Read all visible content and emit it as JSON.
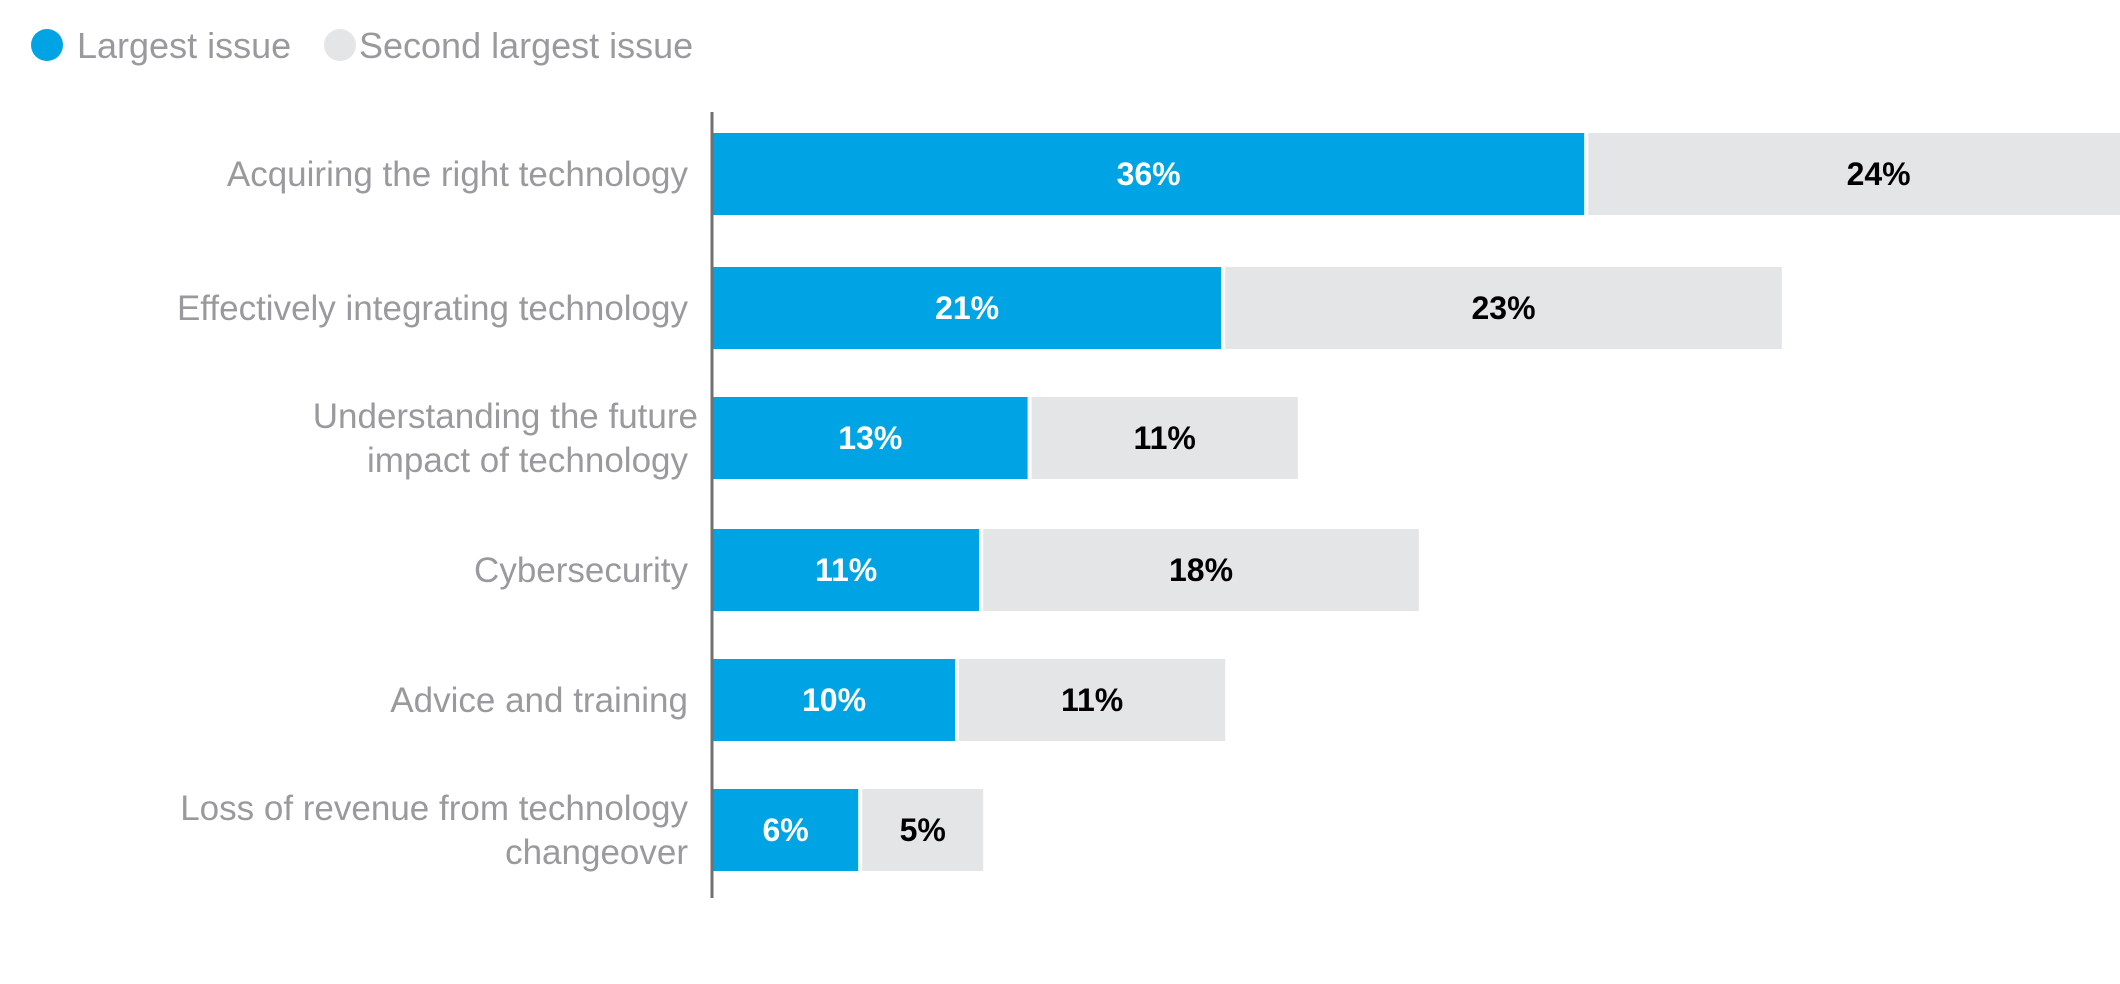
{
  "chart_data": {
    "type": "bar",
    "orientation": "horizontal",
    "stacked": true,
    "title": "",
    "xlabel": "",
    "ylabel": "",
    "xlim": [
      0,
      60
    ],
    "unit": "%",
    "grid": false,
    "legend": {
      "placement": "top-left",
      "entries": [
        {
          "name": "Largest issue",
          "color": "#00a3e4"
        },
        {
          "name": "Second largest issue",
          "color": "#e4e5e7"
        }
      ]
    },
    "categories": [
      [
        "Acquiring the right technology"
      ],
      [
        "Effectively integrating technology"
      ],
      [
        "Understanding the future",
        "impact of technology"
      ],
      [
        "Cybersecurity"
      ],
      [
        "Advice and training"
      ],
      [
        "Loss of revenue from technology",
        "changeover"
      ]
    ],
    "series": [
      {
        "name": "Largest issue",
        "color": "#00a3e4",
        "label_color": "#ffffff",
        "values": [
          36,
          21,
          13,
          11,
          10,
          6
        ],
        "labels": [
          "36%",
          "21%",
          "13%",
          "11%",
          "10%",
          "6%"
        ]
      },
      {
        "name": "Second largest issue",
        "color": "#e4e5e7",
        "label_color": "#000000",
        "values": [
          24,
          23,
          11,
          18,
          11,
          5
        ],
        "labels": [
          "24%",
          "23%",
          "11%",
          "18%",
          "11%",
          "5%"
        ]
      }
    ]
  },
  "colors": {
    "axis": "#707070",
    "category_text": "#9a9a9e",
    "legend_text": "#9a9a9e"
  }
}
